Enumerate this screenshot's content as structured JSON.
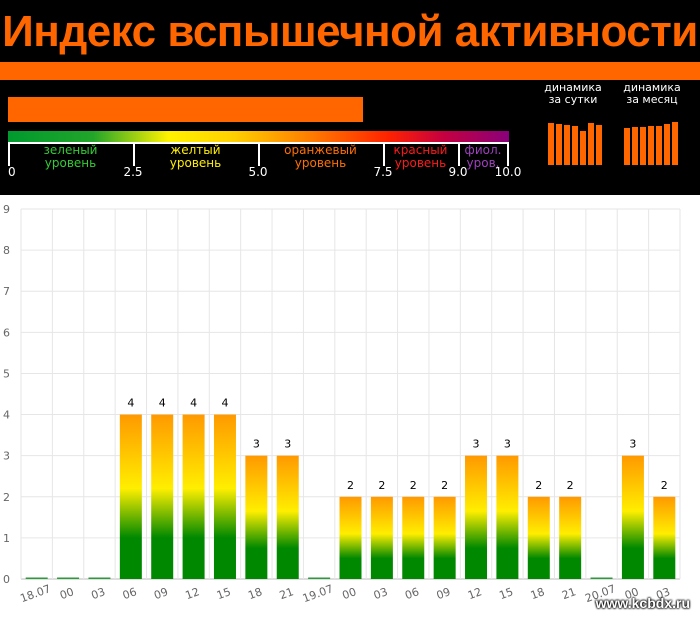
{
  "header": {
    "title": "Индекс вспышечной активности",
    "current_index_fraction": 0.708,
    "scale_numbers": [
      {
        "label": "0",
        "value": 0
      },
      {
        "label": "2.5",
        "value": 2.5
      },
      {
        "label": "5.0",
        "value": 5.0
      },
      {
        "label": "7.5",
        "value": 7.5
      },
      {
        "label": "9.0",
        "value": 9.0
      },
      {
        "label": "10.0",
        "value": 10.0
      }
    ],
    "levels": [
      {
        "name": "green",
        "line1": "зеленый",
        "line2": "уровень",
        "color": "#33cc33",
        "from": 0,
        "to": 2.5
      },
      {
        "name": "yellow",
        "line1": "желтый",
        "line2": "уровень",
        "color": "#ffee00",
        "from": 2.5,
        "to": 5.0
      },
      {
        "name": "orange",
        "line1": "оранжевый",
        "line2": "уровень",
        "color": "#ff6f00",
        "from": 5.0,
        "to": 7.5
      },
      {
        "name": "red",
        "line1": "красный",
        "line2": "уровень",
        "color": "#ff1a1a",
        "from": 7.5,
        "to": 9.0
      },
      {
        "name": "violet",
        "line1": "фиол.",
        "line2": "уров.",
        "color": "#a040c0",
        "from": 9.0,
        "to": 10.0
      }
    ],
    "dynamics_day": {
      "line1": "динамика",
      "line2": "за сутки",
      "values": [
        0.89,
        0.87,
        0.85,
        0.82,
        0.73,
        0.89,
        0.85
      ]
    },
    "dynamics_month": {
      "line1": "динамика",
      "line2": "за месяц",
      "values": [
        0.78,
        0.8,
        0.8,
        0.82,
        0.84,
        0.87,
        0.91
      ]
    },
    "colors": {
      "accent": "#ff6600",
      "background": "#000000"
    }
  },
  "chart_data": {
    "type": "bar",
    "categories": [
      "18.07",
      "00",
      "03",
      "06",
      "09",
      "12",
      "15",
      "18",
      "21",
      "19.07",
      "00",
      "03",
      "06",
      "09",
      "12",
      "15",
      "18",
      "21",
      "20.07",
      "00",
      "03"
    ],
    "values": [
      0,
      0,
      0,
      4,
      4,
      4,
      4,
      3,
      3,
      0,
      2,
      2,
      2,
      2,
      3,
      3,
      2,
      2,
      0,
      3,
      2
    ],
    "ylim": [
      0,
      9
    ],
    "yticks": [
      0,
      1,
      2,
      3,
      4,
      5,
      6,
      7,
      8,
      9
    ],
    "grid": true,
    "bar_gradient": [
      "#ff9900",
      "#ffee00",
      "#008800"
    ]
  },
  "watermark": "www.kcbdx.ru"
}
